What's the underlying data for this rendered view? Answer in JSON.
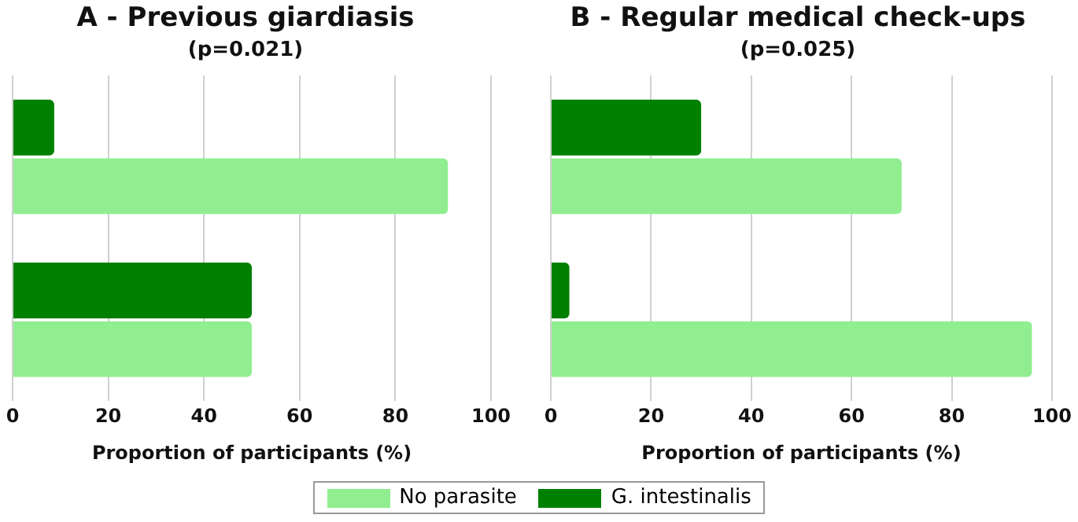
{
  "chart_data": [
    {
      "type": "bar",
      "orientation": "horizontal",
      "title": "A - Previous giardiasis",
      "subtitle": "(p=0.021)",
      "xlabel": "Proportion of participants (%)",
      "categories": [
        null,
        null
      ],
      "series": [
        {
          "name": "G. intestinalis",
          "color": "#008000",
          "values": [
            8.7,
            50
          ]
        },
        {
          "name": "No parasite",
          "color": "#90ee90",
          "values": [
            91,
            50
          ]
        }
      ],
      "xlim": [
        0,
        100
      ],
      "xticks": [
        0,
        20,
        40,
        60,
        80,
        100
      ],
      "grid": "x",
      "legend": "bottom"
    },
    {
      "type": "bar",
      "orientation": "horizontal",
      "title": "B - Regular medical check-ups",
      "subtitle": "(p=0.025)",
      "xlabel": "Proportion of participants (%)",
      "categories": [
        null,
        null
      ],
      "series": [
        {
          "color": "#008000",
          "values": [
            30,
            3.7
          ]
        },
        {
          "color": "#90ee90",
          "values": [
            70,
            96
          ]
        }
      ],
      "xlim": [
        0,
        100
      ],
      "xticks": [
        0,
        20,
        40,
        60,
        80,
        100
      ],
      "grid": "x"
    }
  ]
}
